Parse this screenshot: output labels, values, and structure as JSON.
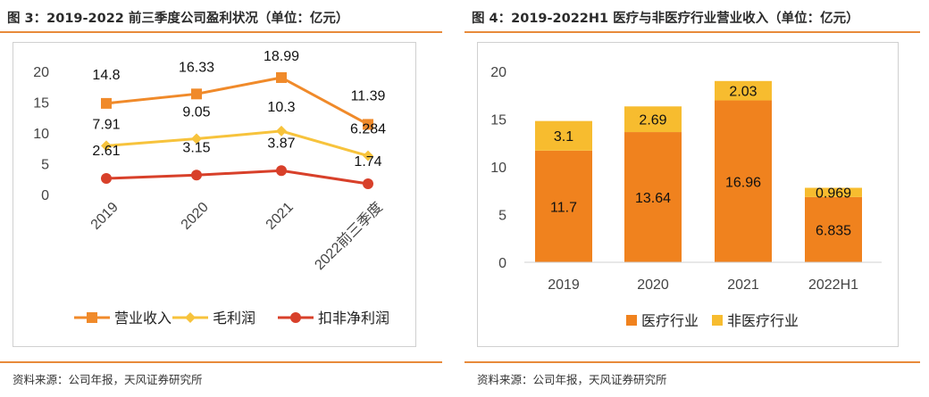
{
  "left": {
    "title": "图 3：2019-2022 前三季度公司盈利状况（单位：亿元）",
    "source": "资料来源：公司年报，天风证券研究所"
  },
  "right": {
    "title": "图 4：2019-2022H1 医疗与非医疗行业营业收入（单位：亿元）",
    "source": "资料来源：公司年报，天风证券研究所"
  },
  "colors": {
    "accent": "#e88a3a",
    "revenue": "#f08a2a",
    "gross": "#f7c33c",
    "net": "#d8402a",
    "medical": "#f0821e",
    "nonmedical": "#f7bc2f",
    "axis_text": "#444444"
  },
  "chart_data": [
    {
      "type": "line",
      "categories": [
        "2019",
        "2020",
        "2021",
        "2022前三季度"
      ],
      "ylim": [
        0,
        20
      ],
      "yticks": [
        0,
        5,
        10,
        15,
        20
      ],
      "series": [
        {
          "name": "营业收入",
          "values": [
            14.8,
            16.33,
            18.99,
            11.39
          ],
          "labels": [
            "14.8",
            "16.33",
            "18.99",
            "11.39"
          ],
          "marker": "square",
          "color": "#f08a2a"
        },
        {
          "name": "毛利润",
          "values": [
            7.91,
            9.05,
            10.3,
            6.284
          ],
          "labels": [
            "7.91",
            "9.05",
            "10.3",
            "6.284"
          ],
          "marker": "diamond",
          "color": "#f7c33c"
        },
        {
          "name": "扣非净利润",
          "values": [
            2.61,
            3.15,
            3.87,
            1.74
          ],
          "labels": [
            "2.61",
            "3.15",
            "3.87",
            "1.74"
          ],
          "marker": "circle",
          "color": "#d8402a"
        }
      ],
      "legend": "bottom",
      "grid": false
    },
    {
      "type": "bar",
      "stacked": true,
      "categories": [
        "2019",
        "2020",
        "2021",
        "2022H1"
      ],
      "ylim": [
        0,
        20
      ],
      "yticks": [
        0,
        5,
        10,
        15,
        20
      ],
      "series": [
        {
          "name": "医疗行业",
          "values": [
            11.7,
            13.64,
            16.96,
            6.835
          ],
          "labels": [
            "11.7",
            "13.64",
            "16.96",
            "6.835"
          ],
          "color": "#f0821e"
        },
        {
          "name": "非医疗行业",
          "values": [
            3.1,
            2.69,
            2.03,
            0.969
          ],
          "labels": [
            "3.1",
            "2.69",
            "2.03",
            "0.969"
          ],
          "color": "#f7bc2f"
        }
      ],
      "legend": "bottom",
      "grid": false
    }
  ]
}
